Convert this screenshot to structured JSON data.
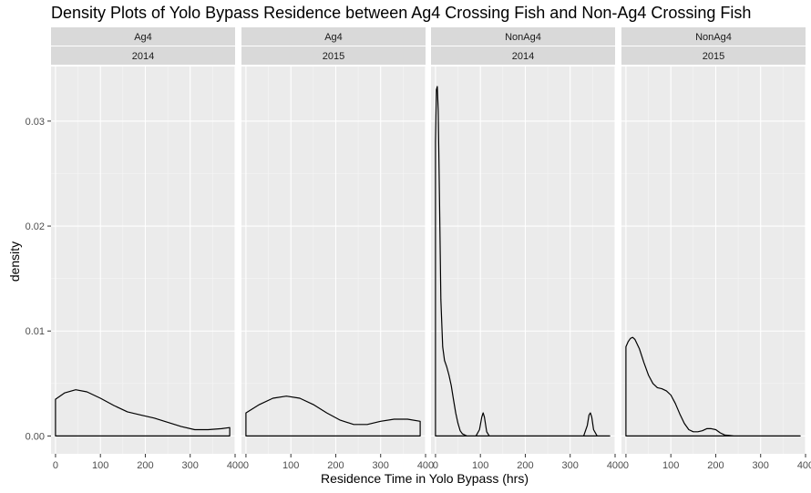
{
  "chart_data": {
    "type": "density",
    "title": "Density Plots of Yolo Bypass Residence between Ag4 Crossing Fish and Non-Ag4 Crossing Fish",
    "xlabel": "Residence Time in Yolo Bypass (hrs)",
    "ylabel": "density",
    "xlim": [
      -10,
      400
    ],
    "ylim": [
      -0.0017,
      0.0352
    ],
    "x_ticks": [
      0,
      100,
      200,
      300,
      400
    ],
    "y_ticks": [
      0.0,
      0.01,
      0.02,
      0.03
    ],
    "y_tick_labels": [
      "0.00",
      "0.01",
      "0.02",
      "0.03"
    ],
    "grid": true,
    "facets": [
      {
        "strip": [
          "Ag4",
          "2014"
        ],
        "curve": {
          "x": [
            0,
            20,
            45,
            70,
            100,
            130,
            160,
            190,
            220,
            250,
            280,
            310,
            340,
            370,
            388
          ],
          "density": [
            0.0035,
            0.0041,
            0.0044,
            0.0042,
            0.0036,
            0.0029,
            0.0023,
            0.002,
            0.0017,
            0.0013,
            0.0009,
            0.0006,
            0.0006,
            0.0007,
            0.0008
          ]
        }
      },
      {
        "strip": [
          "Ag4",
          "2015"
        ],
        "curve": {
          "x": [
            0,
            30,
            60,
            90,
            120,
            150,
            180,
            210,
            240,
            270,
            300,
            330,
            360,
            388
          ],
          "density": [
            0.0022,
            0.003,
            0.0036,
            0.0038,
            0.0036,
            0.003,
            0.0022,
            0.0015,
            0.0011,
            0.0011,
            0.0014,
            0.0016,
            0.0016,
            0.0014
          ]
        }
      },
      {
        "strip": [
          "NonAg4",
          "2014"
        ],
        "curve": {
          "x": [
            0,
            2,
            4,
            6,
            9,
            12,
            16,
            20,
            25,
            30,
            35,
            40,
            45,
            50,
            55,
            60,
            70,
            80,
            90,
            98,
            103,
            106,
            109,
            114,
            120,
            150,
            200,
            250,
            300,
            330,
            338,
            342,
            345,
            348,
            352,
            360,
            380,
            388
          ],
          "density": [
            0.028,
            0.033,
            0.0333,
            0.031,
            0.022,
            0.013,
            0.0085,
            0.0072,
            0.0066,
            0.0058,
            0.0048,
            0.0035,
            0.0022,
            0.0012,
            0.0005,
            0.0002,
            0,
            0,
            0,
            0.0006,
            0.0018,
            0.0022,
            0.0018,
            0.0004,
            0,
            0,
            0,
            0,
            0,
            0,
            0.001,
            0.002,
            0.0022,
            0.0018,
            0.0006,
            0,
            0,
            0
          ]
        }
      },
      {
        "strip": [
          "NonAg4",
          "2015"
        ],
        "curve": {
          "x": [
            0,
            5,
            10,
            15,
            20,
            30,
            40,
            50,
            60,
            70,
            80,
            90,
            100,
            110,
            120,
            130,
            140,
            150,
            160,
            170,
            180,
            190,
            200,
            210,
            220,
            240,
            270,
            300,
            330,
            360,
            388
          ],
          "density": [
            0.0085,
            0.009,
            0.0093,
            0.0094,
            0.0092,
            0.0083,
            0.007,
            0.0058,
            0.005,
            0.0046,
            0.0045,
            0.0043,
            0.0039,
            0.0031,
            0.0021,
            0.0012,
            0.0006,
            0.0004,
            0.0004,
            0.0005,
            0.0007,
            0.0007,
            0.0006,
            0.0003,
            0.0001,
            0,
            0,
            0,
            0,
            0,
            0
          ]
        }
      }
    ]
  }
}
